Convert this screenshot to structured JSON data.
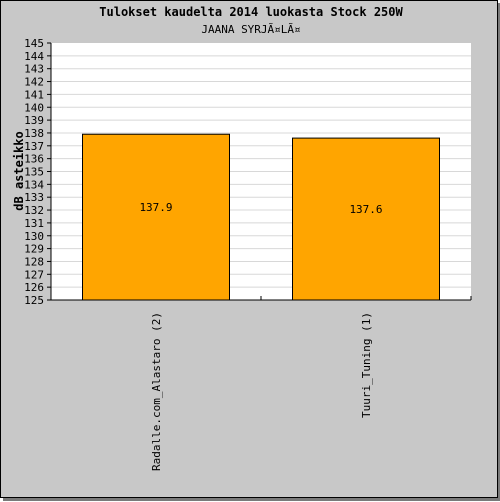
{
  "chart_data": {
    "type": "bar",
    "title": "Tulokset kaudelta 2014 luokasta Stock 250W",
    "subtitle": "JAANA SYRJÃ¤LÃ¤",
    "xlabel": "",
    "ylabel": "dB asteikko",
    "ylim": [
      125,
      145
    ],
    "yticks": [
      "125",
      "126",
      "127",
      "128",
      "129",
      "130",
      "131",
      "132",
      "133",
      "134",
      "135",
      "136",
      "137",
      "138",
      "139",
      "140",
      "141",
      "142",
      "143",
      "144",
      "145"
    ],
    "categories": [
      "Radalle.com_Alastaro (2)",
      "Tuuri_Tuning (1)"
    ],
    "values": [
      137.9,
      137.6
    ],
    "value_labels": [
      "137.9",
      "137.6"
    ],
    "bar_color": "#ffa500",
    "grid": true,
    "legend": "none"
  }
}
